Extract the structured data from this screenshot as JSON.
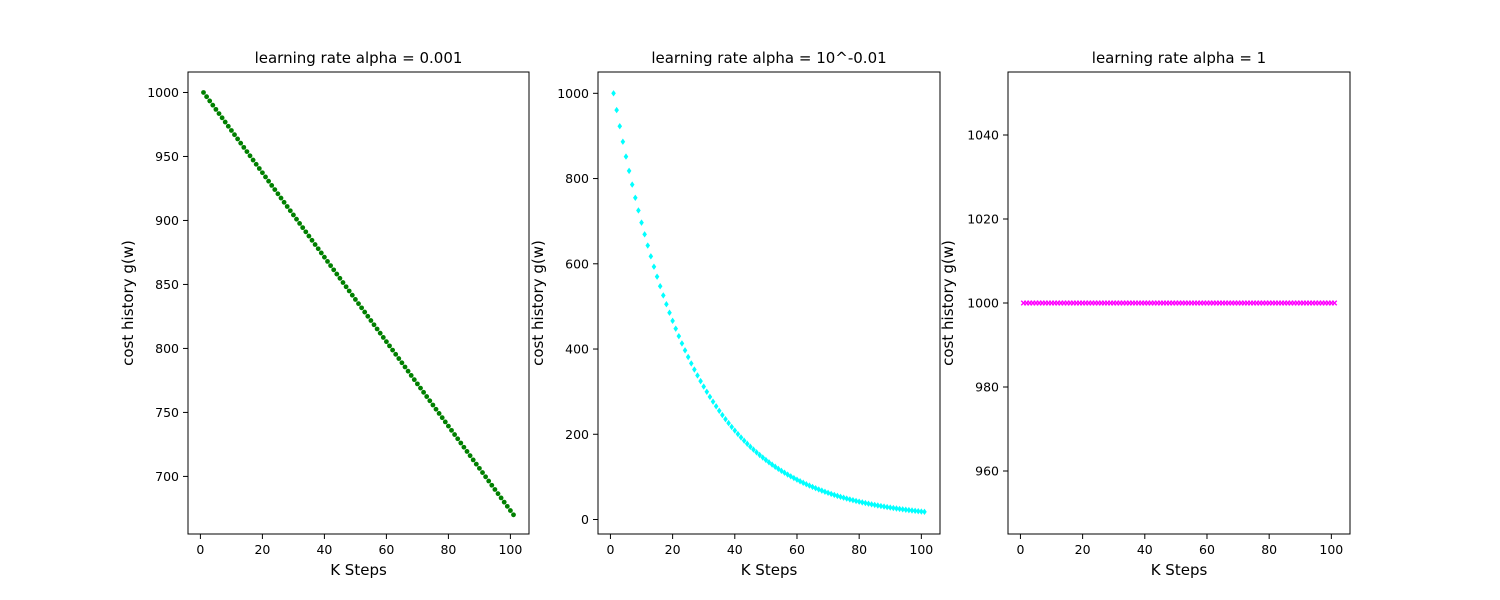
{
  "chart_data": [
    {
      "type": "scatter",
      "title": "learning rate alpha = 0.001",
      "xlabel": "K Steps",
      "ylabel": "cost history g(w)",
      "xlim": [
        -4,
        106
      ],
      "ylim": [
        655,
        1016
      ],
      "xticks": [
        0,
        20,
        40,
        60,
        80,
        100
      ],
      "yticks": [
        700,
        750,
        800,
        850,
        900,
        950,
        1000
      ],
      "grid": false,
      "marker": "circle",
      "color": "#008000",
      "series": [
        {
          "x": [
            1,
            101
          ],
          "y": [
            1000,
            670
          ],
          "count": 101,
          "model": "linear"
        }
      ]
    },
    {
      "type": "scatter",
      "title": "learning rate alpha = 10^-0.01",
      "xlabel": "K Steps",
      "ylabel": "cost history g(w)",
      "xlim": [
        -4,
        106
      ],
      "ylim": [
        -34,
        1050
      ],
      "xticks": [
        0,
        20,
        40,
        60,
        80,
        100
      ],
      "yticks": [
        0,
        200,
        400,
        600,
        800,
        1000
      ],
      "grid": false,
      "marker": "diamond",
      "color": "#00ffff",
      "series": [
        {
          "x": [
            1,
            101
          ],
          "y": [
            1000,
            18
          ],
          "count": 101,
          "model": "geometric"
        }
      ]
    },
    {
      "type": "scatter",
      "title": "learning rate alpha = 1",
      "xlabel": "K Steps",
      "ylabel": "cost history g(w)",
      "xlim": [
        -4,
        106
      ],
      "ylim": [
        945,
        1055
      ],
      "xticks": [
        0,
        20,
        40,
        60,
        80,
        100
      ],
      "yticks": [
        960,
        980,
        1000,
        1020,
        1040
      ],
      "grid": false,
      "marker": "x",
      "color": "#ff00ff",
      "series": [
        {
          "x": [
            1,
            101
          ],
          "y": [
            1000,
            1000
          ],
          "count": 101,
          "model": "constant"
        }
      ]
    }
  ]
}
